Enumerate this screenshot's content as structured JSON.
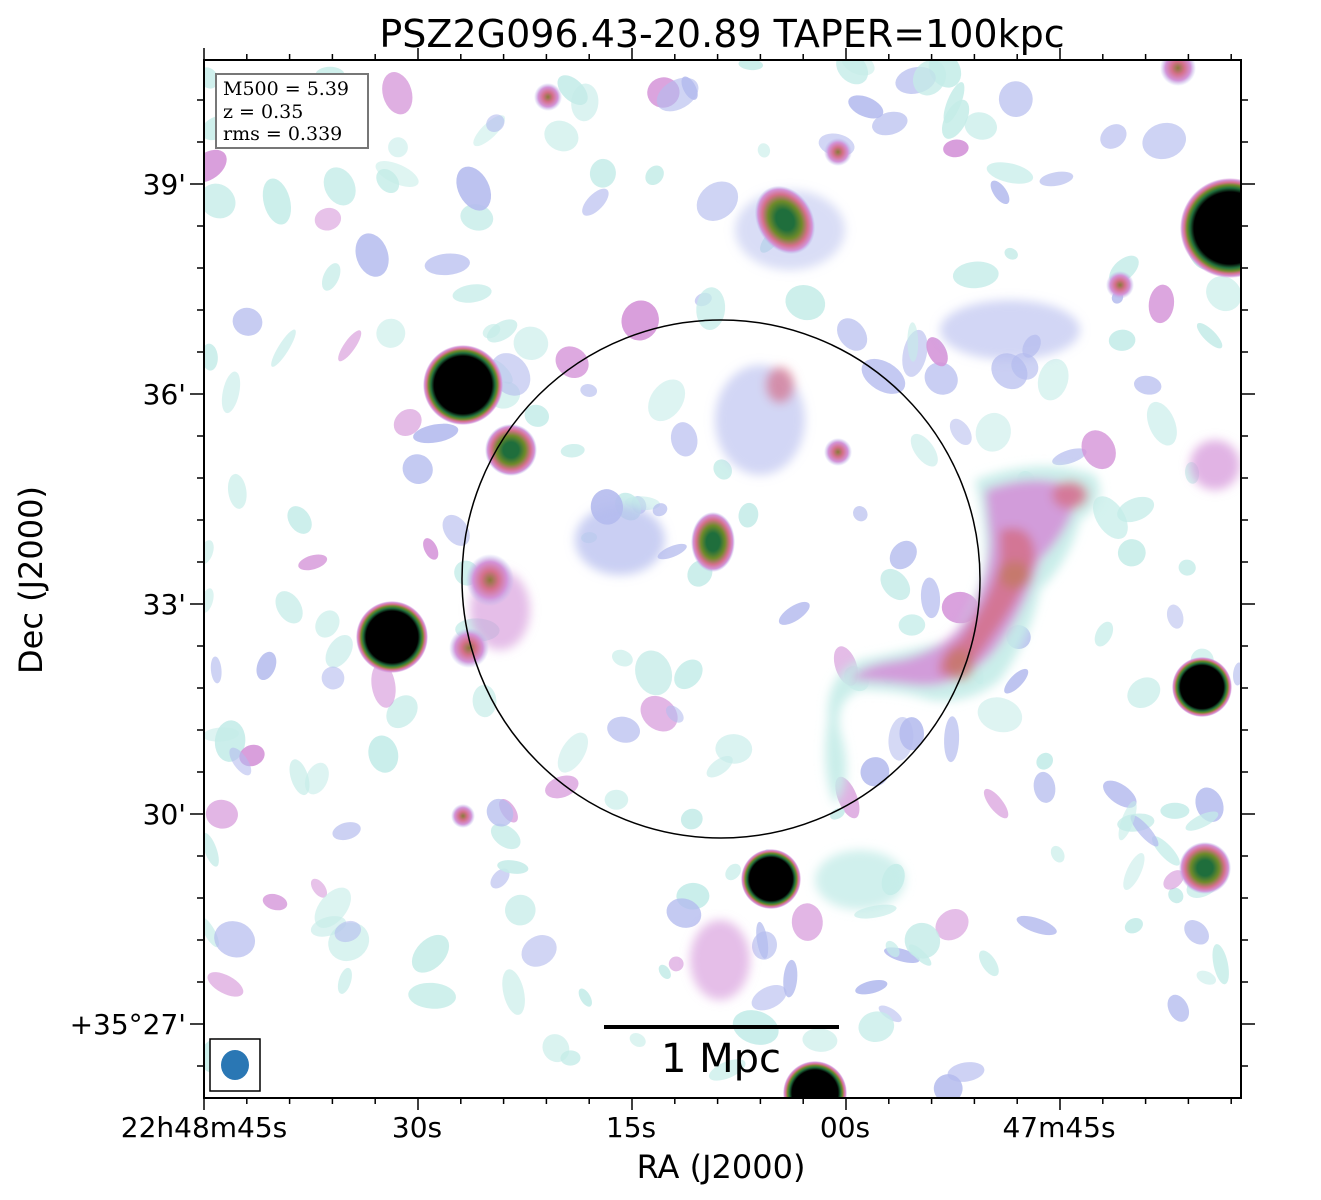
{
  "chart_data": {
    "type": "heatmap",
    "title": "PSZ2G096.43-20.89 TAPER=100kpc",
    "xlabel": "RA (J2000)",
    "ylabel": "Dec (J2000)",
    "x_tick_labels": [
      "22h48m45s",
      "30s",
      "15s",
      "00s",
      "47m45s"
    ],
    "y_tick_labels": [
      "39'",
      "36'",
      "33'",
      "30'",
      "+35°27'"
    ],
    "info_box": [
      "M500 = 5.39",
      "z = 0.35",
      "rms = 0.339"
    ],
    "scale_bar_label": "1 Mpc",
    "colormap": [
      "#ffffff",
      "#c4ece8",
      "#b4bbee",
      "#d493d8",
      "#d4708a",
      "#6f8a2a",
      "#1f6e3c",
      "#000000"
    ],
    "beam_color": "#2a77b4",
    "sources": [
      {
        "name": "top-right bright source",
        "intensity": 1.0
      },
      {
        "name": "upper-left bright source",
        "intensity": 1.0
      },
      {
        "name": "left bright source",
        "intensity": 1.0
      },
      {
        "name": "right compact source",
        "intensity": 0.95
      },
      {
        "name": "lower-center compact source",
        "intensity": 0.95
      },
      {
        "name": "bottom edge source",
        "intensity": 0.95
      },
      {
        "name": "upper compact source",
        "intensity": 0.75
      },
      {
        "name": "central compact source",
        "intensity": 0.7
      },
      {
        "name": "source near circle edge",
        "intensity": 0.7
      },
      {
        "name": "lower-right compact source",
        "intensity": 0.7
      },
      {
        "name": "extended diffuse emission",
        "intensity": 0.45
      }
    ]
  }
}
